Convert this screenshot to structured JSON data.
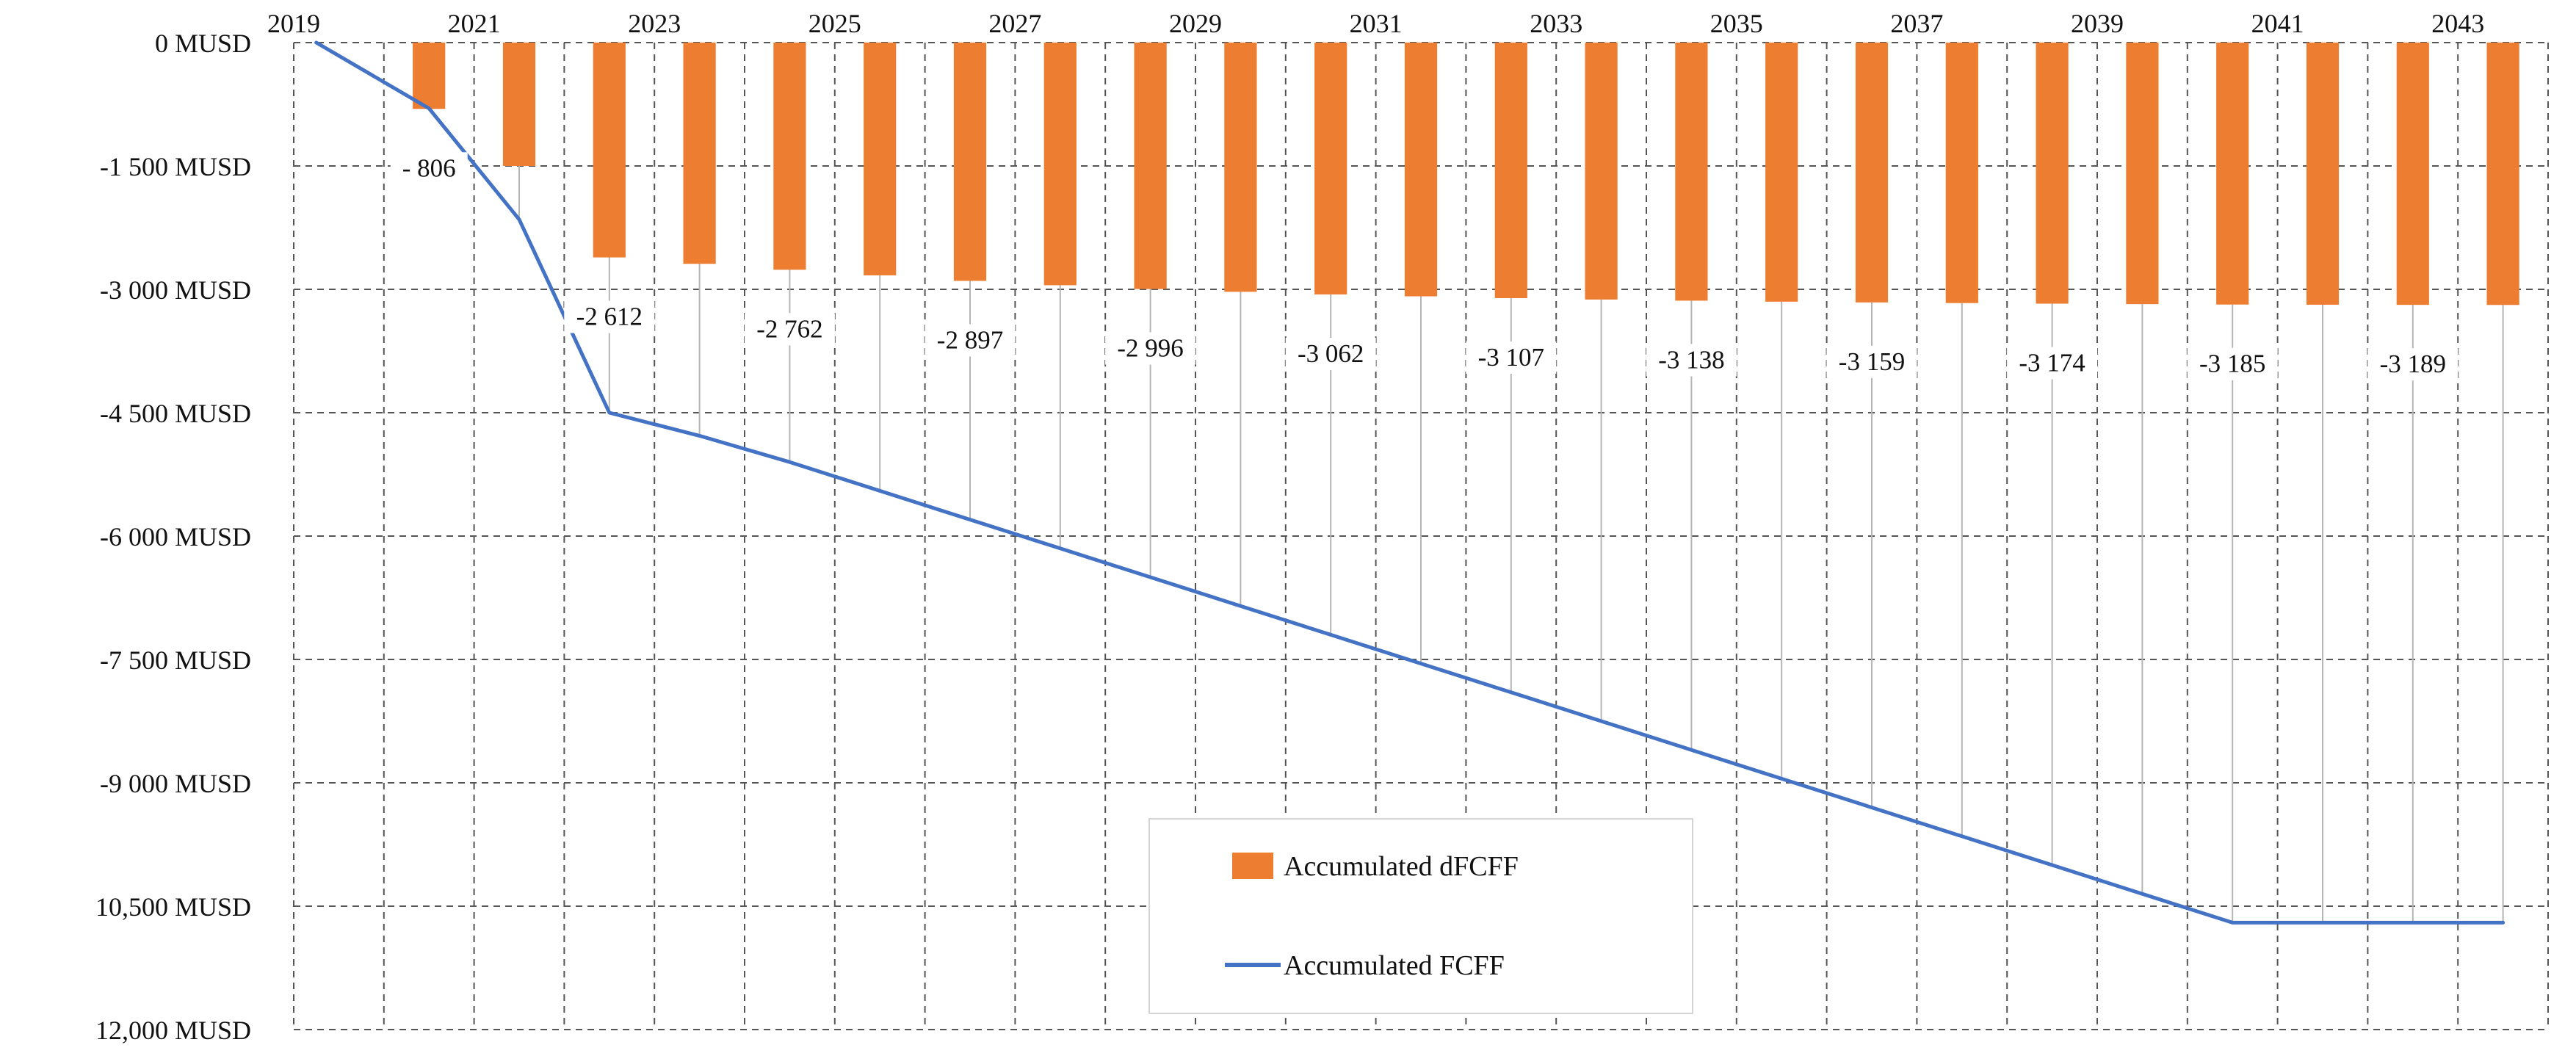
{
  "chart_data": {
    "type": "bar+line",
    "x": [
      2019,
      2020,
      2021,
      2022,
      2023,
      2024,
      2025,
      2026,
      2027,
      2028,
      2029,
      2030,
      2031,
      2032,
      2033,
      2034,
      2035,
      2036,
      2037,
      2038,
      2039,
      2040,
      2041,
      2042,
      2043
    ],
    "x_tick_labels": [
      "2019",
      "2021",
      "2023",
      "2025",
      "2027",
      "2029",
      "2031",
      "2033",
      "2035",
      "2037",
      "2039",
      "2041",
      "2043"
    ],
    "y_tick_labels": [
      "0 MUSD",
      "-1 500 MUSD",
      "-3 000 MUSD",
      "-4 500 MUSD",
      "-6 000 MUSD",
      "-7 500 MUSD",
      "-9 000 MUSD",
      "10,500 MUSD",
      "12,000 MUSD"
    ],
    "ylim": [
      -12000,
      0
    ],
    "x_axis_position": "top",
    "grid": "dashed",
    "legend_position": "bottom-center",
    "series": [
      {
        "name": "Accumulated dFCFF",
        "type": "bar",
        "color": "#ed7d31",
        "values": [
          null,
          -806,
          -1500,
          -2612,
          -2690,
          -2762,
          -2830,
          -2897,
          -2950,
          -2996,
          -3030,
          -3062,
          -3085,
          -3107,
          -3124,
          -3138,
          -3150,
          -3159,
          -3167,
          -3174,
          -3180,
          -3185,
          -3187,
          -3189,
          -3190
        ]
      },
      {
        "name": "Accumulated FCFF",
        "type": "line",
        "color": "#4472c4",
        "values": [
          0,
          -800,
          -2150,
          -4500,
          -4780,
          -5100,
          -5450,
          -5800,
          -6150,
          -6500,
          -6850,
          -7200,
          -7550,
          -7900,
          -8250,
          -8600,
          -8950,
          -9300,
          -9650,
          -10000,
          -10350,
          -10700,
          -10700,
          -10700,
          -10700
        ]
      }
    ],
    "data_labels": [
      {
        "x": 2020,
        "text": "- 806"
      },
      {
        "x": 2022,
        "text": "-2 612"
      },
      {
        "x": 2024,
        "text": "-2 762"
      },
      {
        "x": 2026,
        "text": "-2 897"
      },
      {
        "x": 2028,
        "text": "-2 996"
      },
      {
        "x": 2030,
        "text": "-3 062"
      },
      {
        "x": 2032,
        "text": "-3 107"
      },
      {
        "x": 2034,
        "text": "-3 138"
      },
      {
        "x": 2036,
        "text": "-3 159"
      },
      {
        "x": 2038,
        "text": "-3 174"
      },
      {
        "x": 2040,
        "text": "-3 185"
      },
      {
        "x": 2042,
        "text": "-3 189"
      }
    ],
    "legend": {
      "bar_label": "Accumulated dFCFF",
      "line_label": "Accumulated FCFF"
    }
  }
}
